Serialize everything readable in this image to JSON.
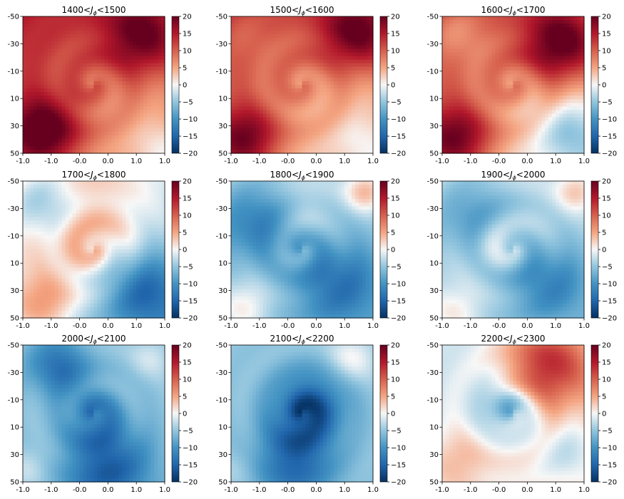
{
  "chart_data": {
    "type": "heatmap",
    "colormap": "RdBu_r",
    "grid": false,
    "x_ticks": [
      "-1.0",
      "-1.0",
      "-0.0",
      "0.0",
      "1.0",
      "1.0"
    ],
    "y_ticks": [
      "-50",
      "-30",
      "-10",
      "10",
      "30",
      "50"
    ],
    "colorbar": {
      "vmin": -20,
      "vmax": 20,
      "ticks": [
        20,
        15,
        10,
        5,
        0,
        -5,
        -10,
        -15,
        -20
      ]
    },
    "panels": [
      {
        "title_lo": "1400<",
        "title_hi": "<1500",
        "fields": {
          "bg": 9,
          "diag": 6,
          "blobs": [
            [
              0.15,
              0.85,
              14,
              0.18
            ],
            [
              0.85,
              0.15,
              12,
              0.2
            ],
            [
              0.95,
              0.95,
              -3,
              0.12
            ]
          ]
        }
      },
      {
        "title_lo": "1500<",
        "title_hi": "<1600",
        "fields": {
          "bg": 7,
          "diag": 6,
          "blobs": [
            [
              0.1,
              0.9,
              13,
              0.17
            ],
            [
              0.9,
              0.12,
              14,
              0.2
            ],
            [
              0.1,
              0.15,
              -2,
              0.12
            ],
            [
              0.9,
              0.9,
              -2,
              0.1
            ]
          ]
        }
      },
      {
        "title_lo": "1600<",
        "title_hi": "<1700",
        "fields": {
          "bg": 6,
          "diag": 7,
          "blobs": [
            [
              0.1,
              0.9,
              14,
              0.18
            ],
            [
              0.85,
              0.2,
              16,
              0.2
            ],
            [
              0.1,
              0.12,
              -5,
              0.14
            ],
            [
              0.9,
              0.85,
              -6,
              0.15
            ]
          ]
        }
      },
      {
        "title_lo": "1700<",
        "title_hi": "<1800",
        "fields": {
          "bg": -1,
          "diag": 6,
          "blobs": [
            [
              0.12,
              0.15,
              -8,
              0.18
            ],
            [
              0.85,
              0.8,
              -10,
              0.2
            ],
            [
              0.5,
              0.45,
              5,
              0.22
            ],
            [
              0.15,
              0.9,
              7,
              0.15
            ]
          ]
        }
      },
      {
        "title_lo": "1800<",
        "title_hi": "<1900",
        "fields": {
          "bg": -4,
          "diag": 2,
          "blobs": [
            [
              0.15,
              0.3,
              -9,
              0.22
            ],
            [
              0.75,
              0.75,
              -9,
              0.22
            ],
            [
              0.5,
              0.2,
              2,
              0.12
            ],
            [
              0.1,
              0.92,
              5,
              0.12
            ],
            [
              0.95,
              0.08,
              8,
              0.1
            ]
          ]
        }
      },
      {
        "title_lo": "1900<",
        "title_hi": "<2000",
        "fields": {
          "bg": -3,
          "diag": 2,
          "blobs": [
            [
              0.2,
              0.25,
              -7,
              0.22
            ],
            [
              0.75,
              0.75,
              -8,
              0.2
            ],
            [
              0.4,
              0.45,
              4,
              0.12
            ],
            [
              0.1,
              0.95,
              4,
              0.12
            ],
            [
              0.95,
              0.08,
              6,
              0.1
            ]
          ]
        }
      },
      {
        "title_lo": "2000<",
        "title_hi": "<2100",
        "fields": {
          "bg": -5,
          "diag": 0,
          "blobs": [
            [
              0.25,
              0.15,
              -9,
              0.15
            ],
            [
              0.6,
              0.9,
              -11,
              0.22
            ],
            [
              0.5,
              0.5,
              -6,
              0.15
            ],
            [
              0.9,
              0.1,
              3,
              0.1
            ],
            [
              0.05,
              0.9,
              3,
              0.1
            ]
          ]
        }
      },
      {
        "title_lo": "2100<",
        "title_hi": "<2200",
        "fields": {
          "bg": -5,
          "diag": 0,
          "blobs": [
            [
              0.55,
              0.45,
              -12,
              0.18
            ],
            [
              0.45,
              0.85,
              -10,
              0.2
            ],
            [
              0.85,
              0.1,
              5,
              0.12
            ],
            [
              0.05,
              0.9,
              2,
              0.1
            ]
          ]
        }
      },
      {
        "title_lo": "2200<",
        "title_hi": "<2300",
        "fields": {
          "bg": 0,
          "diag": -2,
          "blobs": [
            [
              0.75,
              0.15,
              14,
              0.22
            ],
            [
              0.45,
              0.45,
              -9,
              0.13
            ],
            [
              0.1,
              0.85,
              4,
              0.15
            ],
            [
              0.9,
              0.8,
              -4,
              0.15
            ]
          ]
        }
      }
    ]
  }
}
